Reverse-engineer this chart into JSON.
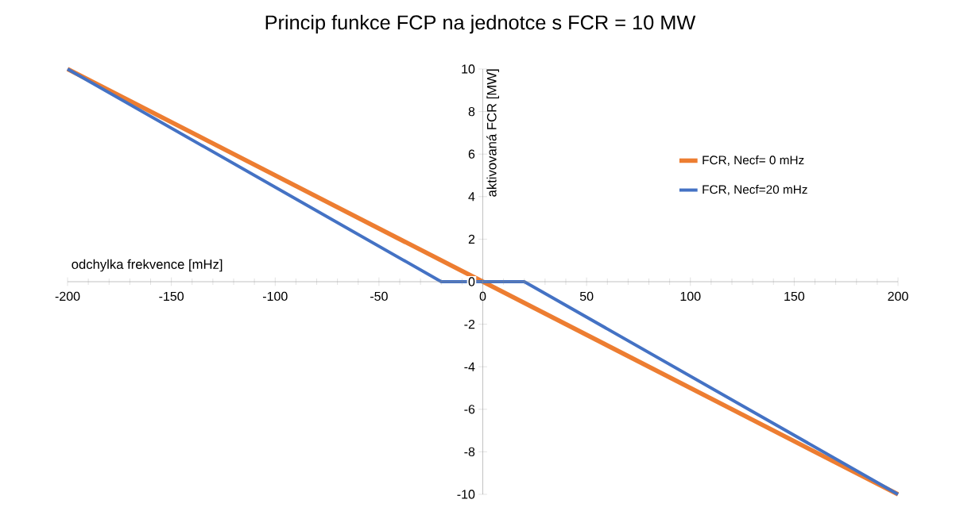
{
  "chart_data": {
    "type": "line",
    "title": "Princip funkce FCP na jednotce s FCR = 10 MW",
    "xlabel": "odchylka frekvence [mHz]",
    "ylabel": "aktivovaná FCR [MW]",
    "xlim": [
      -200,
      200
    ],
    "xticks": [
      -200,
      -150,
      -100,
      -50,
      0,
      50,
      100,
      150,
      200
    ],
    "ylim": [
      -10,
      10
    ],
    "yticks": [
      -10,
      -8,
      -6,
      -4,
      -2,
      0,
      2,
      4,
      6,
      8,
      10
    ],
    "series": [
      {
        "name": "FCR, Necf= 0 mHz",
        "color": "#ed7d31",
        "x": [
          -200,
          200
        ],
        "values": [
          10,
          -10
        ]
      },
      {
        "name": "FCR, Necf=20 mHz",
        "color": "#4472c4",
        "x": [
          -200,
          -20,
          20,
          200
        ],
        "values": [
          10,
          0,
          0,
          -10
        ]
      }
    ],
    "grid": false,
    "legend": "right",
    "marker": "none",
    "line_style": "solid"
  }
}
